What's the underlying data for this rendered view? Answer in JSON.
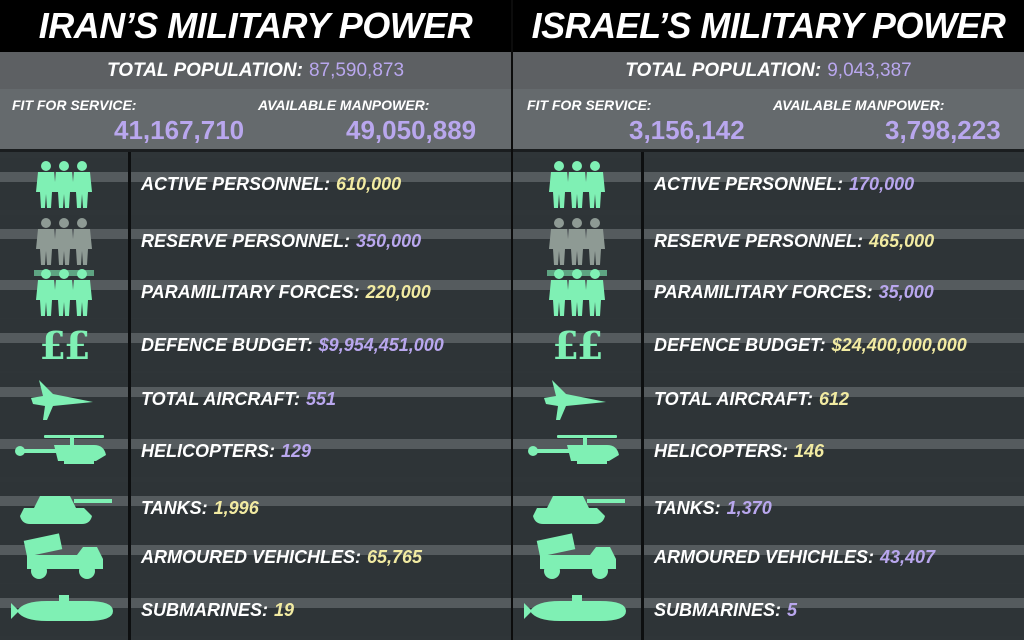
{
  "colors": {
    "mint": "#7ff0b4",
    "grey_icon": "#8e9a94",
    "purple": "#b9a7ee",
    "yellow": "#f2eba2"
  },
  "iran": {
    "title": "IRAN’S MILITARY POWER",
    "population_label": "TOTAL POPULATION:",
    "population_value": "87,590,873",
    "fit_label": "FIT FOR SERVICE:",
    "fit_value": "41,167,710",
    "manpower_label": "AVAILABLE MANPOWER:",
    "manpower_value": "49,050,889",
    "rows": [
      {
        "icon": "soldiers-icon",
        "label": "ACTIVE PERSONNEL:",
        "value": "610,000",
        "color": "yellow"
      },
      {
        "icon": "reserve-soldiers-icon",
        "label": "RESERVE PERSONNEL:",
        "value": "350,000",
        "color": "purple"
      },
      {
        "icon": "paramilitary-icon",
        "label": "PARAMILITARY FORCES:",
        "value": "220,000",
        "color": "yellow"
      },
      {
        "icon": "pound-icon",
        "glyph": "££",
        "label": "DEFENCE BUDGET:",
        "value": "$9,954,451,000",
        "color": "purple"
      },
      {
        "icon": "aircraft-icon",
        "label": "TOTAL AIRCRAFT:",
        "value": "551",
        "color": "purple"
      },
      {
        "icon": "helicopter-icon",
        "label": "HELICOPTERS:",
        "value": "129",
        "color": "purple"
      },
      {
        "icon": "tank-icon",
        "label": "TANKS:",
        "value": "1,996",
        "color": "yellow"
      },
      {
        "icon": "armoured-vehicle-icon",
        "label": "ARMOURED VEHICHLES:",
        "value": "65,765",
        "color": "yellow"
      },
      {
        "icon": "submarine-icon",
        "label": "SUBMARINES:",
        "value": "19",
        "color": "yellow"
      }
    ]
  },
  "israel": {
    "title": "ISRAEL’S MILITARY POWER",
    "population_label": "TOTAL POPULATION:",
    "population_value": "9,043,387",
    "fit_label": "FIT FOR SERVICE:",
    "fit_value": "3,156,142",
    "manpower_label": "AVAILABLE MANPOWER:",
    "manpower_value": "3,798,223",
    "rows": [
      {
        "icon": "soldiers-icon",
        "label": "ACTIVE PERSONNEL:",
        "value": "170,000",
        "color": "purple"
      },
      {
        "icon": "reserve-soldiers-icon",
        "label": "RESERVE PERSONNEL:",
        "value": "465,000",
        "color": "yellow"
      },
      {
        "icon": "paramilitary-icon",
        "label": "PARAMILITARY FORCES:",
        "value": "35,000",
        "color": "purple"
      },
      {
        "icon": "pound-icon",
        "glyph": "££",
        "label": "DEFENCE BUDGET:",
        "value": "$24,400,000,000",
        "color": "yellow"
      },
      {
        "icon": "aircraft-icon",
        "label": "TOTAL AIRCRAFT:",
        "value": "612",
        "color": "yellow"
      },
      {
        "icon": "helicopter-icon",
        "label": "HELICOPTERS:",
        "value": "146",
        "color": "yellow"
      },
      {
        "icon": "tank-icon",
        "label": "TANKS:",
        "value": "1,370",
        "color": "purple"
      },
      {
        "icon": "armoured-vehicle-icon",
        "label": "ARMOURED VEHICHLES:",
        "value": "43,407",
        "color": "purple"
      },
      {
        "icon": "submarine-icon",
        "label": "SUBMARINES:",
        "value": "5",
        "color": "purple"
      }
    ]
  },
  "chart_data": {
    "type": "table",
    "title": "",
    "columns": [
      "IRAN’S MILITARY POWER",
      "ISRAEL’S MILITARY POWER"
    ],
    "rows": [
      {
        "metric": "TOTAL POPULATION",
        "iran": "87,590,873",
        "israel": "9,043,387"
      },
      {
        "metric": "FIT FOR SERVICE",
        "iran": "41,167,710",
        "israel": "3,156,142"
      },
      {
        "metric": "AVAILABLE MANPOWER",
        "iran": "49,050,889",
        "israel": "3,798,223"
      },
      {
        "metric": "ACTIVE PERSONNEL",
        "iran": "610,000",
        "israel": "170,000"
      },
      {
        "metric": "RESERVE PERSONNEL",
        "iran": "350,000",
        "israel": "465,000"
      },
      {
        "metric": "PARAMILITARY FORCES",
        "iran": "220,000",
        "israel": "35,000"
      },
      {
        "metric": "DEFENCE BUDGET",
        "iran": "$9,954,451,000",
        "israel": "$24,400,000,000"
      },
      {
        "metric": "TOTAL AIRCRAFT",
        "iran": "551",
        "israel": "612"
      },
      {
        "metric": "HELICOPTERS",
        "iran": "129",
        "israel": "146"
      },
      {
        "metric": "TANKS",
        "iran": "1,996",
        "israel": "1,370"
      },
      {
        "metric": "ARMOURED VEHICHLES",
        "iran": "65,765",
        "israel": "43,407"
      },
      {
        "metric": "SUBMARINES",
        "iran": "19",
        "israel": "5"
      }
    ]
  }
}
